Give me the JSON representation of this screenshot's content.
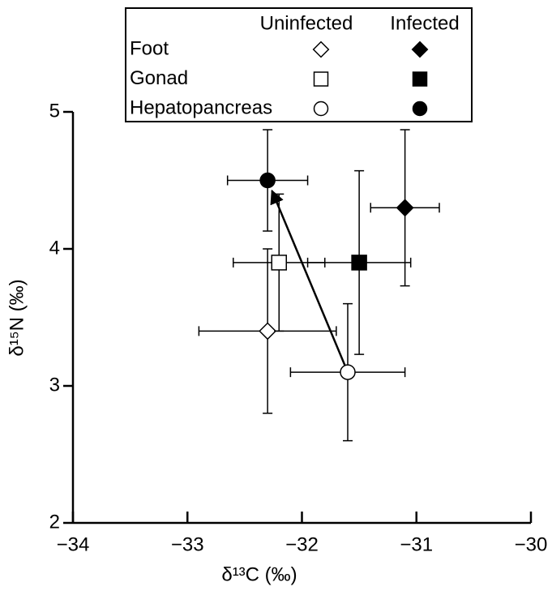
{
  "chart_data": {
    "type": "scatter",
    "x_label": "δ¹³C (‰)",
    "y_label": "δ¹⁵N (‰)",
    "xlim": [
      -34,
      -30
    ],
    "ylim": [
      2,
      5
    ],
    "xticks": [
      {
        "value": -34,
        "label": "−34"
      },
      {
        "value": -33,
        "label": "−33"
      },
      {
        "value": -32,
        "label": "−32"
      },
      {
        "value": -31,
        "label": "−31"
      },
      {
        "value": -30,
        "label": "−30"
      }
    ],
    "yticks": [
      2,
      3,
      4,
      5
    ],
    "legend_columns": [
      "Uninfected",
      "Infected"
    ],
    "color": "#000000",
    "series": [
      {
        "name": "Foot",
        "marker": "diamond",
        "uninfected": {
          "x": -32.3,
          "y": 3.4,
          "xerr": 0.6,
          "yerr": 0.6
        },
        "infected": {
          "x": -31.1,
          "y": 4.3,
          "xerr": 0.3,
          "yerr": 0.57
        }
      },
      {
        "name": "Gonad",
        "marker": "square",
        "uninfected": {
          "x": -32.2,
          "y": 3.9,
          "xerr": 0.4,
          "yerr": 0.5
        },
        "infected": {
          "x": -31.5,
          "y": 3.9,
          "xerr": 0.45,
          "yerr": 0.67
        }
      },
      {
        "name": "Hepatopancreas",
        "marker": "circle",
        "uninfected": {
          "x": -31.6,
          "y": 3.1,
          "xerr": 0.5,
          "yerr": 0.5
        },
        "infected": {
          "x": -32.3,
          "y": 4.5,
          "xerr": 0.35,
          "yerr": 0.37
        }
      }
    ]
  }
}
